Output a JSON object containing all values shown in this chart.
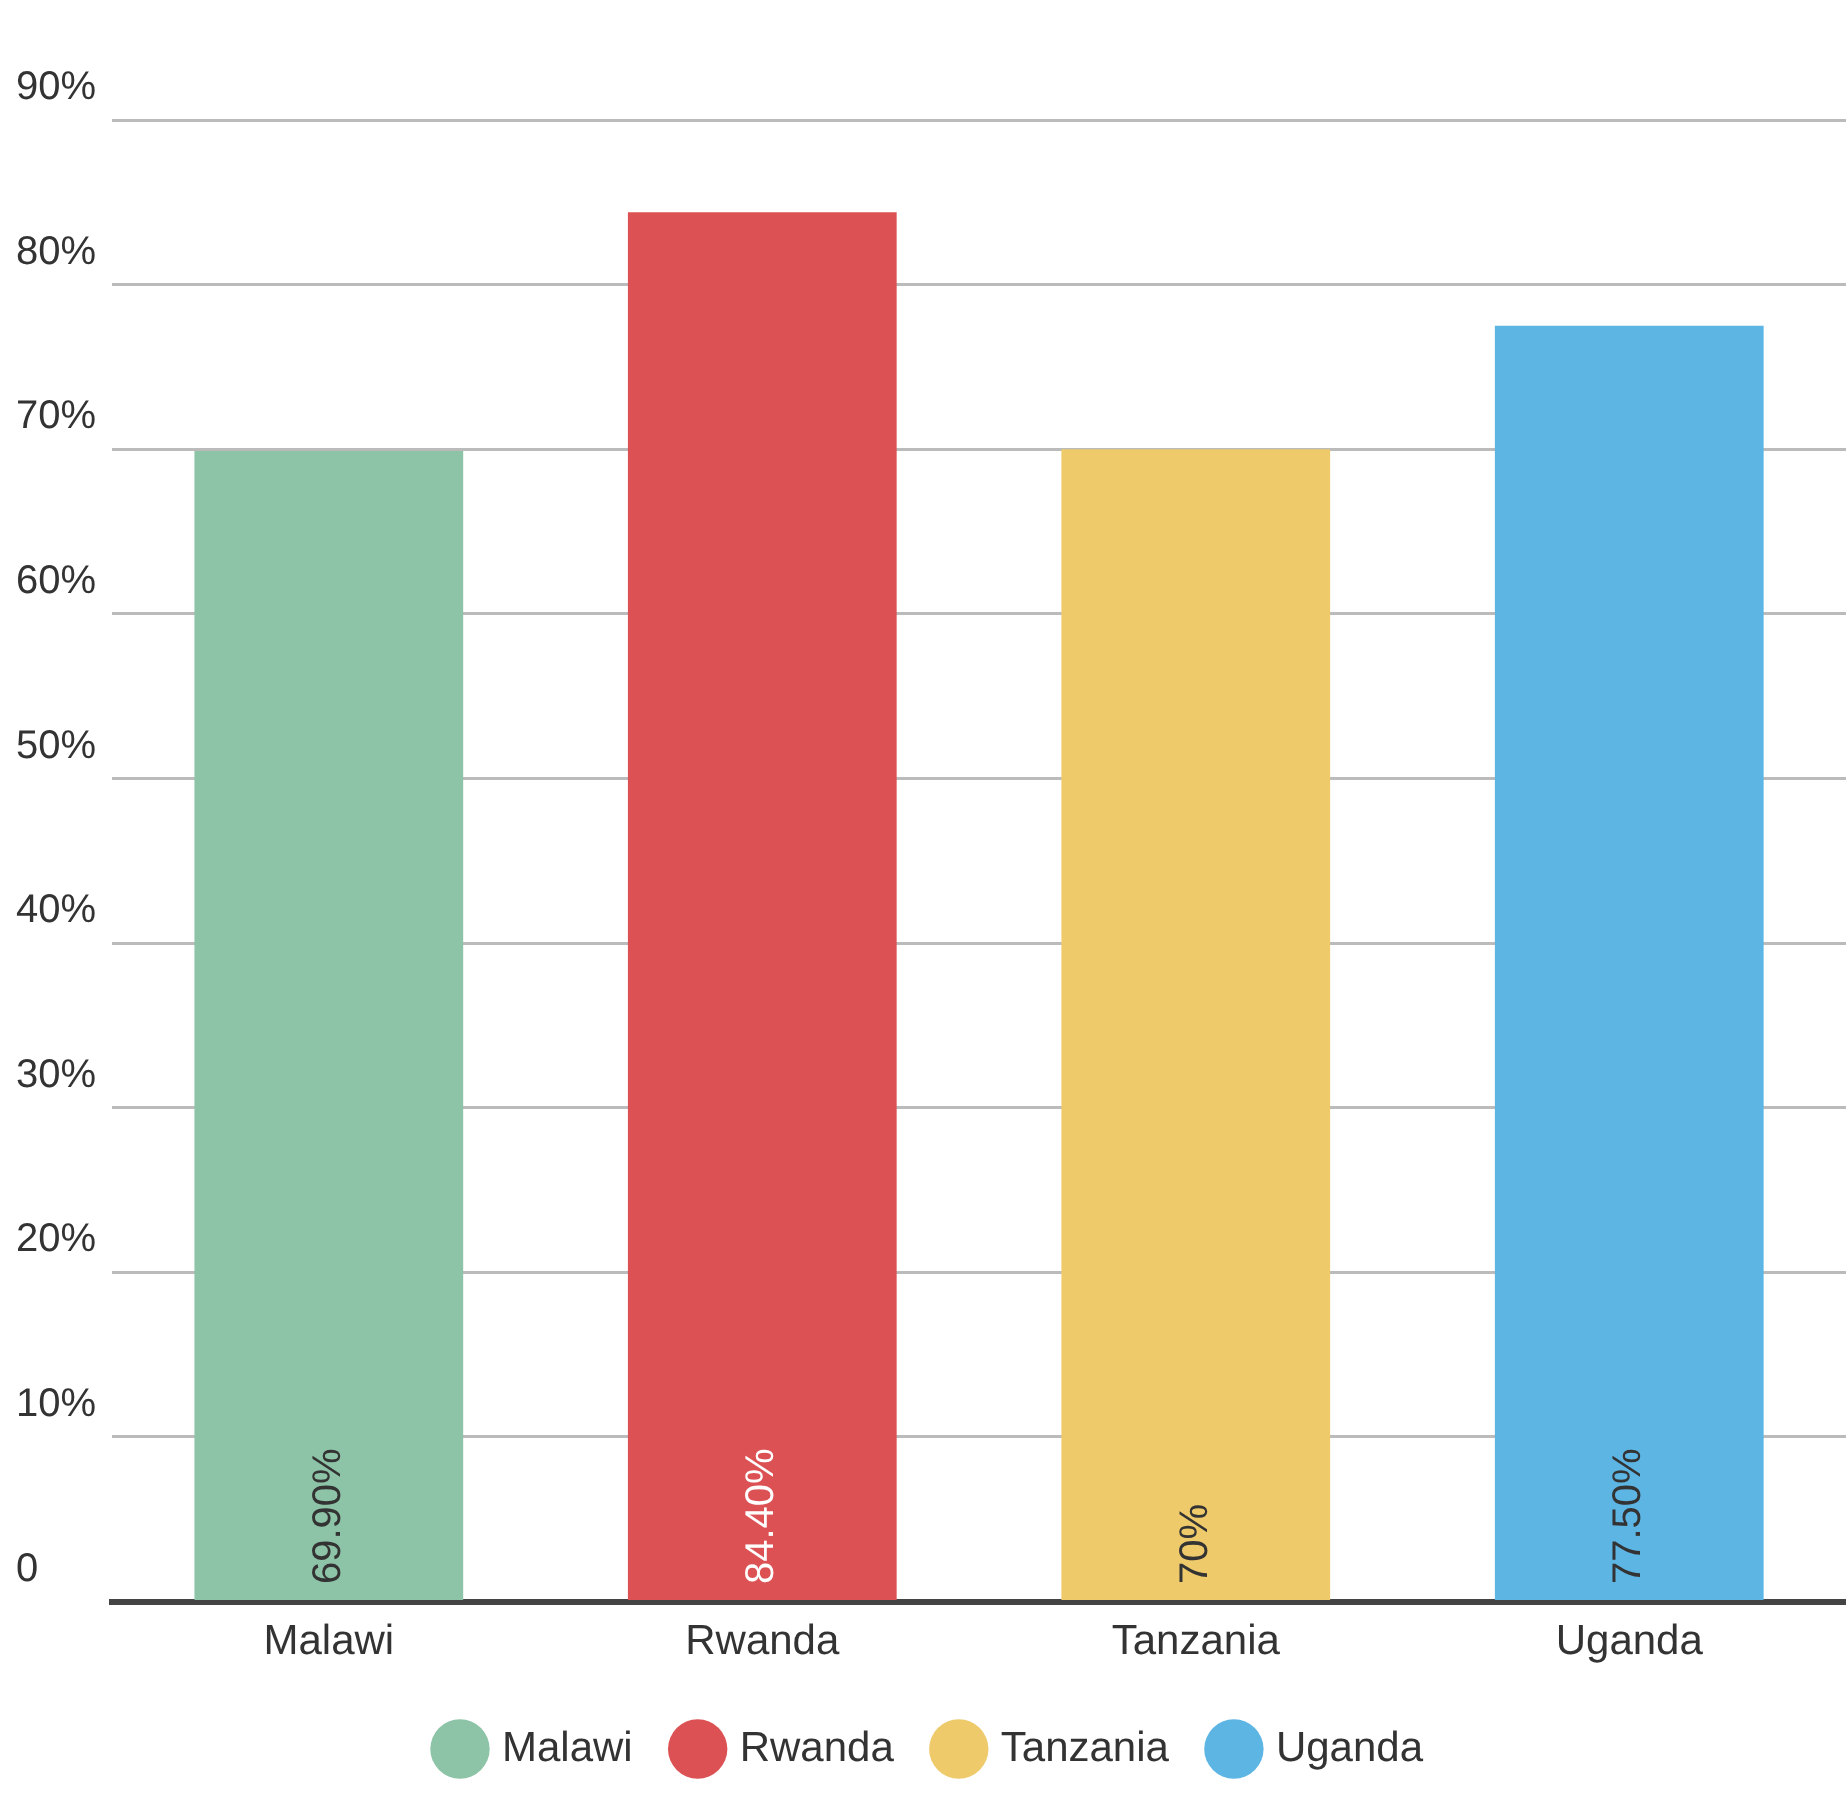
{
  "chart_data": {
    "type": "bar",
    "categories": [
      "Malawi",
      "Rwanda",
      "Tanzania",
      "Uganda"
    ],
    "series": [
      {
        "name": "Malawi",
        "color": "#8dc3a7",
        "values": [
          69.9,
          null,
          null,
          null
        ],
        "value_labels": [
          "69.90%",
          null,
          null,
          null
        ]
      },
      {
        "name": "Rwanda",
        "color": "#dc5254",
        "values": [
          null,
          84.4,
          null,
          null
        ],
        "value_labels": [
          null,
          "84.40%",
          null,
          null
        ]
      },
      {
        "name": "Tanzania",
        "color": "#eeca6a",
        "values": [
          null,
          null,
          70,
          null
        ],
        "value_labels": [
          null,
          null,
          "70%",
          null
        ]
      },
      {
        "name": "Uganda",
        "color": "#5db5e4",
        "values": [
          null,
          null,
          null,
          77.5
        ],
        "value_labels": [
          null,
          null,
          null,
          "77.50%"
        ]
      }
    ],
    "stacked": true,
    "ylim": [
      0,
      90
    ],
    "yticks": [
      0,
      {
        "value": 10,
        "label": "10%"
      },
      {
        "value": 20,
        "label": "20%"
      },
      {
        "value": 30,
        "label": "30%"
      },
      {
        "value": 40,
        "label": "40%"
      },
      {
        "value": 50,
        "label": "50%"
      },
      {
        "value": 60,
        "label": "60%"
      },
      {
        "value": 70,
        "label": "70%"
      },
      {
        "value": 80,
        "label": "80%"
      },
      {
        "value": 90,
        "label": "90%"
      }
    ],
    "grid": "y",
    "legend": "bottom",
    "marker": "circle"
  }
}
